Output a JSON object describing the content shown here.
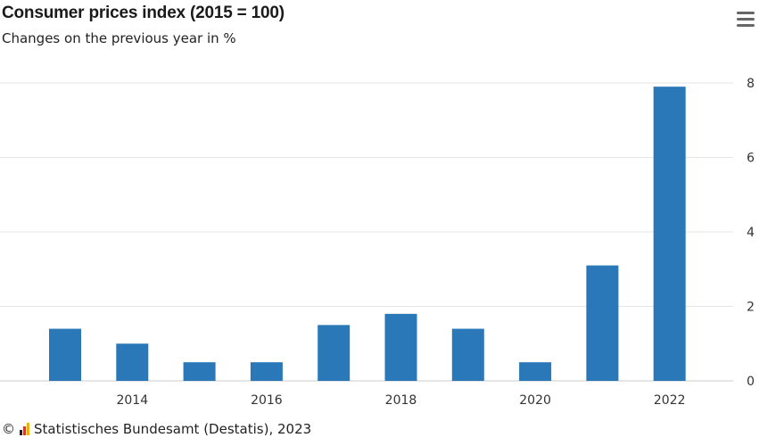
{
  "chart_data": {
    "type": "bar",
    "title": "Consumer prices index (2015 = 100)",
    "subtitle": "Changes on the previous year in %",
    "x": [
      2013,
      2014,
      2015,
      2016,
      2017,
      2018,
      2019,
      2020,
      2021,
      2022
    ],
    "values": [
      1.4,
      1.0,
      0.5,
      0.5,
      1.5,
      1.8,
      1.4,
      0.5,
      3.1,
      7.9
    ],
    "x_tick_labels": [
      "2014",
      "2016",
      "2018",
      "2020",
      "2022"
    ],
    "y_ticks": [
      0,
      2,
      4,
      6,
      8
    ],
    "ylim": [
      0,
      8
    ],
    "y_axis_side": "right",
    "grid": true,
    "bar_color": "#2a78b8"
  },
  "footer": {
    "copyright": "©",
    "source": "Statistisches Bundesamt (Destatis), 2023",
    "logo_colors": [
      "#222222",
      "#d63a2f",
      "#e8b400"
    ]
  }
}
